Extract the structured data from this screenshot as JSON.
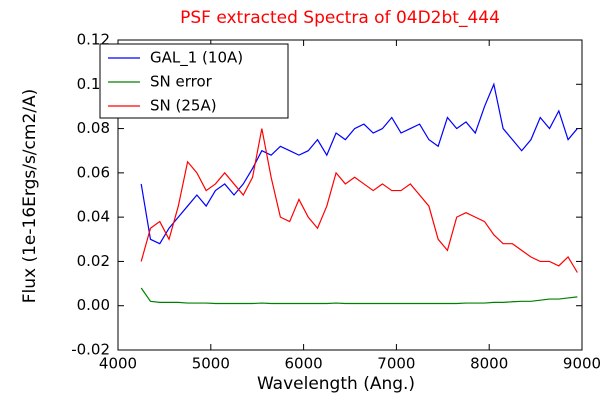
{
  "chart_data": {
    "type": "line",
    "title": "PSF extracted Spectra of 04D2bt_444",
    "title_color": "#ff0000",
    "xlabel": "Wavelength (Ang.)",
    "ylabel": "Flux (1e-16Ergs/s/cm2/A)",
    "x": [
      4250,
      4350,
      4450,
      4550,
      4650,
      4750,
      4850,
      4950,
      5050,
      5150,
      5250,
      5350,
      5450,
      5550,
      5650,
      5750,
      5850,
      5950,
      6050,
      6150,
      6250,
      6350,
      6450,
      6550,
      6650,
      6750,
      6850,
      6950,
      7050,
      7150,
      7250,
      7350,
      7450,
      7550,
      7650,
      7750,
      7850,
      7950,
      8050,
      8150,
      8250,
      8350,
      8450,
      8550,
      8650,
      8750,
      8850,
      8950
    ],
    "series": [
      {
        "name": "GAL_1 (10A)",
        "color": "#0000ff",
        "values": [
          0.055,
          0.03,
          0.028,
          0.035,
          0.04,
          0.045,
          0.05,
          0.045,
          0.052,
          0.055,
          0.05,
          0.055,
          0.062,
          0.07,
          0.068,
          0.072,
          0.07,
          0.068,
          0.07,
          0.075,
          0.068,
          0.078,
          0.075,
          0.08,
          0.082,
          0.078,
          0.08,
          0.085,
          0.078,
          0.08,
          0.082,
          0.075,
          0.072,
          0.085,
          0.08,
          0.083,
          0.078,
          0.09,
          0.1,
          0.08,
          0.075,
          0.07,
          0.075,
          0.085,
          0.08,
          0.088,
          0.075,
          0.08
        ]
      },
      {
        "name": "SN error",
        "color": "#008000",
        "values": [
          0.008,
          0.002,
          0.0015,
          0.0015,
          0.0015,
          0.0012,
          0.0012,
          0.0012,
          0.001,
          0.001,
          0.001,
          0.001,
          0.001,
          0.0012,
          0.001,
          0.001,
          0.001,
          0.001,
          0.001,
          0.001,
          0.001,
          0.0012,
          0.001,
          0.001,
          0.001,
          0.001,
          0.001,
          0.001,
          0.001,
          0.001,
          0.001,
          0.001,
          0.001,
          0.001,
          0.001,
          0.0012,
          0.0012,
          0.0012,
          0.0015,
          0.0015,
          0.0018,
          0.002,
          0.002,
          0.0025,
          0.003,
          0.003,
          0.0035,
          0.004
        ]
      },
      {
        "name": "SN (25A)",
        "color": "#ff0000",
        "values": [
          0.02,
          0.035,
          0.038,
          0.03,
          0.045,
          0.065,
          0.06,
          0.052,
          0.055,
          0.06,
          0.055,
          0.05,
          0.058,
          0.08,
          0.058,
          0.04,
          0.038,
          0.048,
          0.04,
          0.035,
          0.045,
          0.06,
          0.055,
          0.058,
          0.055,
          0.052,
          0.055,
          0.052,
          0.052,
          0.055,
          0.05,
          0.045,
          0.03,
          0.025,
          0.04,
          0.042,
          0.04,
          0.038,
          0.032,
          0.028,
          0.028,
          0.025,
          0.022,
          0.02,
          0.02,
          0.018,
          0.022,
          0.015
        ]
      }
    ],
    "xlim": [
      4000,
      9000
    ],
    "xticks": [
      4000,
      5000,
      6000,
      7000,
      8000,
      9000
    ],
    "ylim": [
      -0.02,
      0.12
    ],
    "yticks": [
      -0.02,
      {
        "value": 0,
        "label": "0.00"
      },
      0.02,
      0.04,
      0.06,
      0.08,
      {
        "value": 0.1,
        "label": "0.10"
      },
      0.12
    ],
    "legend": "upper left"
  }
}
